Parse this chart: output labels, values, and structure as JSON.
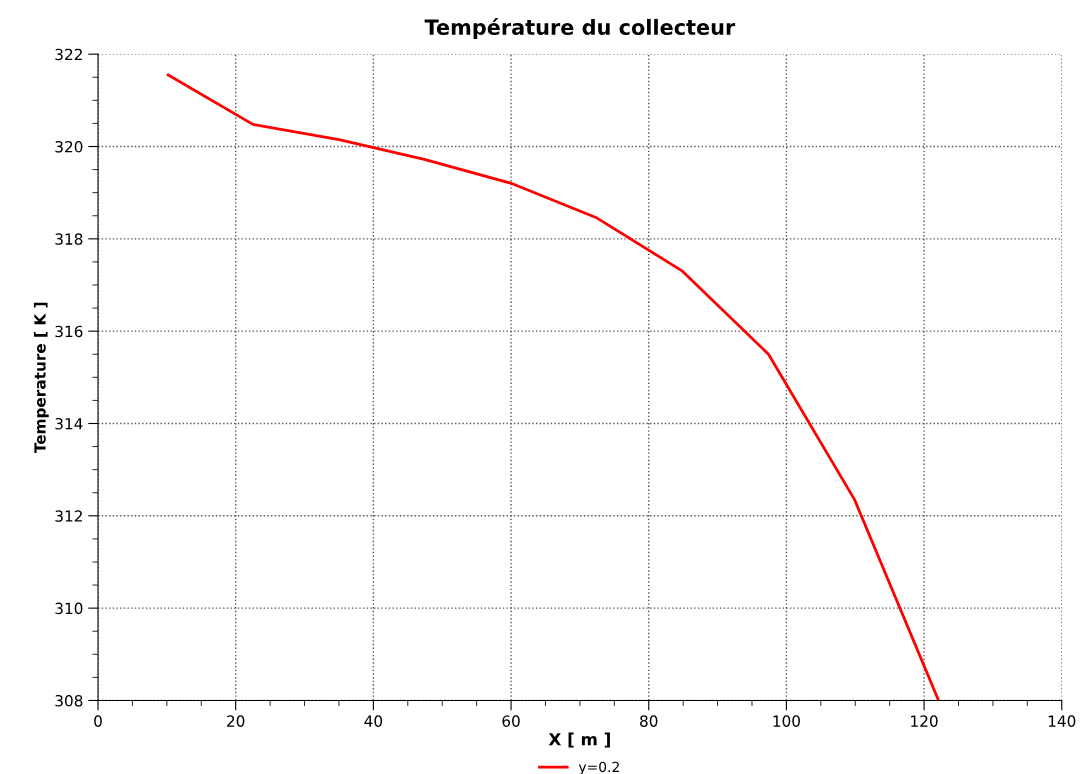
{
  "chart_data": {
    "type": "line",
    "title": "Température du collecteur",
    "xlabel": "X [ m ]",
    "ylabel": "Temperature [ K ]",
    "xlim": [
      0,
      140
    ],
    "xticks": [
      0,
      20,
      40,
      60,
      80,
      100,
      120,
      140
    ],
    "ylim": [
      308,
      322
    ],
    "yticks": [
      308,
      310,
      312,
      314,
      316,
      318,
      320,
      322
    ],
    "grid": true,
    "legend": "bottom",
    "line_style": "solid",
    "marker": "none",
    "series": [
      {
        "name": "y=0.2",
        "color": "#ff0000",
        "x": [
          10.2,
          22.5,
          35.0,
          47.4,
          60.1,
          72.5,
          84.9,
          97.4,
          109.9,
          122.1
        ],
        "values": [
          321.55,
          320.48,
          320.15,
          319.72,
          319.2,
          318.45,
          317.3,
          315.5,
          312.35,
          308.0
        ]
      }
    ]
  }
}
